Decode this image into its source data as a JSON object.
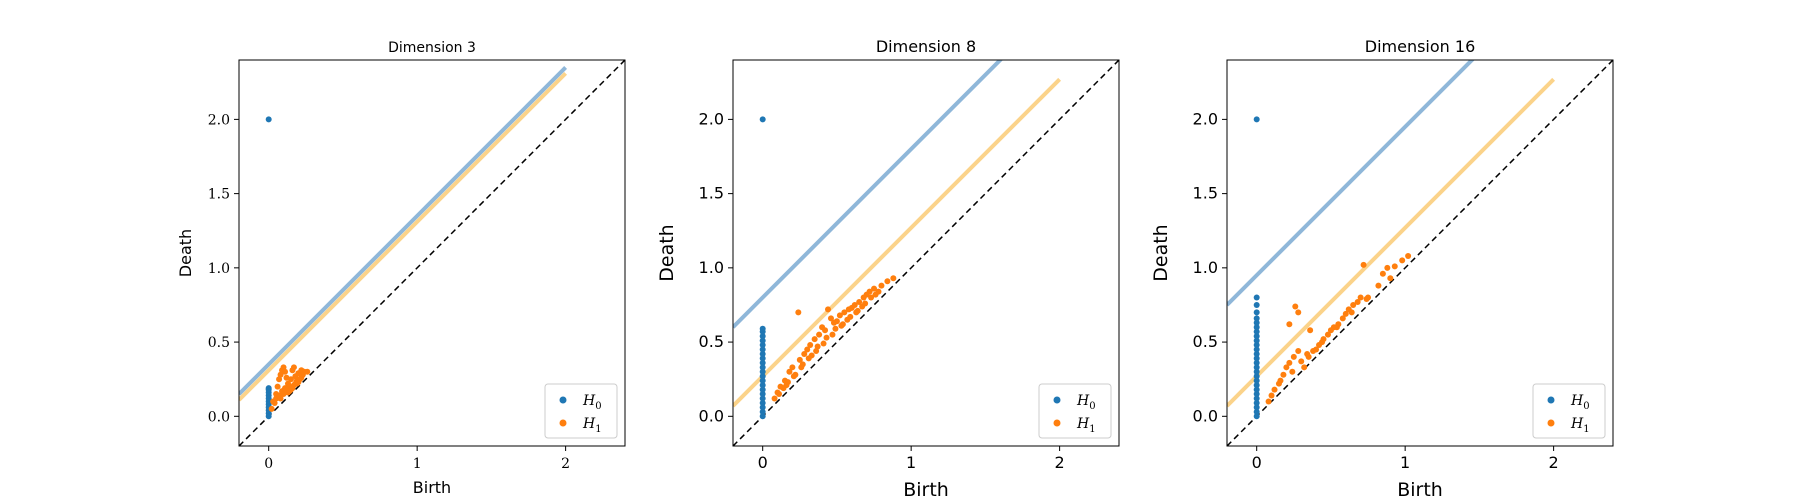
{
  "colors": {
    "H0": "#1f77b4",
    "H1": "#ff7f0e",
    "band0": "#8fb7d9",
    "band1": "#fbd38a"
  },
  "chart_data": [
    {
      "type": "scatter",
      "title": "Dimension 3",
      "xlabel": "Birth",
      "ylabel": "Death",
      "xlim": [
        -0.2,
        2.4
      ],
      "ylim": [
        -0.2,
        2.4
      ],
      "xticks": [
        "0",
        "1",
        "2"
      ],
      "yticks": [
        "0.0",
        "0.5",
        "1.0",
        "1.5",
        "2.0"
      ],
      "legend": {
        "placement": "lower-right",
        "entries": [
          "H0",
          "H1"
        ]
      },
      "band_offsets": {
        "H0": 0.35,
        "H1": 0.31
      },
      "series": [
        {
          "name": "H0",
          "points": [
            [
              0,
              2.0
            ],
            [
              0,
              0.0
            ],
            [
              0,
              0.02
            ],
            [
              0,
              0.04
            ],
            [
              0,
              0.06
            ],
            [
              0,
              0.08
            ],
            [
              0,
              0.1
            ],
            [
              0,
              0.12
            ],
            [
              0,
              0.14
            ],
            [
              0,
              0.16
            ],
            [
              0,
              0.18
            ],
            [
              0,
              0.19
            ]
          ]
        },
        {
          "name": "H1",
          "points": [
            [
              0.02,
              0.05
            ],
            [
              0.04,
              0.09
            ],
            [
              0.05,
              0.15
            ],
            [
              0.06,
              0.2
            ],
            [
              0.07,
              0.25
            ],
            [
              0.08,
              0.28
            ],
            [
              0.09,
              0.31
            ],
            [
              0.1,
              0.33
            ],
            [
              0.11,
              0.3
            ],
            [
              0.12,
              0.26
            ],
            [
              0.13,
              0.22
            ],
            [
              0.14,
              0.2
            ],
            [
              0.15,
              0.25
            ],
            [
              0.16,
              0.31
            ],
            [
              0.17,
              0.33
            ],
            [
              0.18,
              0.27
            ],
            [
              0.19,
              0.24
            ],
            [
              0.2,
              0.29
            ],
            [
              0.22,
              0.31
            ],
            [
              0.24,
              0.3
            ],
            [
              0.26,
              0.3
            ],
            [
              0.03,
              0.1
            ],
            [
              0.05,
              0.12
            ],
            [
              0.07,
              0.14
            ],
            [
              0.09,
              0.17
            ],
            [
              0.11,
              0.19
            ],
            [
              0.13,
              0.16
            ],
            [
              0.15,
              0.18
            ],
            [
              0.17,
              0.21
            ],
            [
              0.19,
              0.22
            ],
            [
              0.21,
              0.25
            ],
            [
              0.08,
              0.12
            ],
            [
              0.1,
              0.15
            ],
            [
              0.12,
              0.18
            ],
            [
              0.14,
              0.17
            ],
            [
              0.16,
              0.19
            ],
            [
              0.18,
              0.22
            ],
            [
              0.2,
              0.23
            ],
            [
              0.22,
              0.26
            ],
            [
              0.23,
              0.28
            ]
          ]
        }
      ]
    },
    {
      "type": "scatter",
      "title": "Dimension 8",
      "xlabel": "Birth",
      "ylabel": "Death",
      "xlim": [
        -0.2,
        2.4
      ],
      "ylim": [
        -0.2,
        2.4
      ],
      "xticks": [
        "0",
        "1",
        "2"
      ],
      "yticks": [
        "0.0",
        "0.5",
        "1.0",
        "1.5",
        "2.0"
      ],
      "legend": {
        "placement": "lower-right",
        "entries": [
          "H0",
          "H1"
        ]
      },
      "band_offsets": {
        "H0": 0.8,
        "H1": 0.27
      },
      "series": [
        {
          "name": "H0",
          "points": [
            [
              0,
              2.0
            ],
            [
              0,
              0.0
            ],
            [
              0,
              0.03
            ],
            [
              0,
              0.06
            ],
            [
              0,
              0.09
            ],
            [
              0,
              0.12
            ],
            [
              0,
              0.15
            ],
            [
              0,
              0.18
            ],
            [
              0,
              0.21
            ],
            [
              0,
              0.24
            ],
            [
              0,
              0.27
            ],
            [
              0,
              0.3
            ],
            [
              0,
              0.33
            ],
            [
              0,
              0.36
            ],
            [
              0,
              0.39
            ],
            [
              0,
              0.42
            ],
            [
              0,
              0.45
            ],
            [
              0,
              0.48
            ],
            [
              0,
              0.51
            ],
            [
              0,
              0.54
            ],
            [
              0,
              0.57
            ],
            [
              0,
              0.59
            ]
          ]
        },
        {
          "name": "H1",
          "points": [
            [
              0.08,
              0.12
            ],
            [
              0.1,
              0.16
            ],
            [
              0.12,
              0.2
            ],
            [
              0.15,
              0.24
            ],
            [
              0.18,
              0.3
            ],
            [
              0.2,
              0.33
            ],
            [
              0.24,
              0.7
            ],
            [
              0.25,
              0.38
            ],
            [
              0.28,
              0.42
            ],
            [
              0.3,
              0.45
            ],
            [
              0.32,
              0.48
            ],
            [
              0.35,
              0.52
            ],
            [
              0.38,
              0.55
            ],
            [
              0.4,
              0.6
            ],
            [
              0.42,
              0.58
            ],
            [
              0.44,
              0.72
            ],
            [
              0.46,
              0.66
            ],
            [
              0.48,
              0.63
            ],
            [
              0.5,
              0.64
            ],
            [
              0.52,
              0.68
            ],
            [
              0.55,
              0.7
            ],
            [
              0.58,
              0.72
            ],
            [
              0.6,
              0.73
            ],
            [
              0.62,
              0.75
            ],
            [
              0.65,
              0.77
            ],
            [
              0.68,
              0.8
            ],
            [
              0.7,
              0.82
            ],
            [
              0.72,
              0.84
            ],
            [
              0.75,
              0.86
            ],
            [
              0.8,
              0.88
            ],
            [
              0.84,
              0.91
            ],
            [
              0.88,
              0.93
            ],
            [
              0.14,
              0.19
            ],
            [
              0.17,
              0.23
            ],
            [
              0.21,
              0.27
            ],
            [
              0.26,
              0.33
            ],
            [
              0.31,
              0.39
            ],
            [
              0.36,
              0.44
            ],
            [
              0.41,
              0.49
            ],
            [
              0.47,
              0.55
            ],
            [
              0.53,
              0.61
            ],
            [
              0.57,
              0.65
            ],
            [
              0.63,
              0.7
            ],
            [
              0.67,
              0.74
            ],
            [
              0.73,
              0.8
            ],
            [
              0.11,
              0.15
            ],
            [
              0.16,
              0.21
            ],
            [
              0.22,
              0.28
            ],
            [
              0.27,
              0.35
            ],
            [
              0.33,
              0.41
            ],
            [
              0.37,
              0.47
            ],
            [
              0.43,
              0.53
            ],
            [
              0.49,
              0.59
            ],
            [
              0.54,
              0.62
            ],
            [
              0.59,
              0.67
            ],
            [
              0.64,
              0.71
            ],
            [
              0.69,
              0.76
            ],
            [
              0.76,
              0.82
            ],
            [
              0.78,
              0.84
            ]
          ]
        }
      ]
    },
    {
      "type": "scatter",
      "title": "Dimension 16",
      "xlabel": "Birth",
      "ylabel": "Death",
      "xlim": [
        -0.2,
        2.4
      ],
      "ylim": [
        -0.2,
        2.4
      ],
      "xticks": [
        "0",
        "1",
        "2"
      ],
      "yticks": [
        "0.0",
        "0.5",
        "1.0",
        "1.5",
        "2.0"
      ],
      "legend": {
        "placement": "lower-right",
        "entries": [
          "H0",
          "H1"
        ]
      },
      "band_offsets": {
        "H0": 0.95,
        "H1": 0.27
      },
      "series": [
        {
          "name": "H0",
          "points": [
            [
              0,
              2.0
            ],
            [
              0,
              0.0
            ],
            [
              0,
              0.03
            ],
            [
              0,
              0.06
            ],
            [
              0,
              0.09
            ],
            [
              0,
              0.12
            ],
            [
              0,
              0.15
            ],
            [
              0,
              0.18
            ],
            [
              0,
              0.21
            ],
            [
              0,
              0.24
            ],
            [
              0,
              0.27
            ],
            [
              0,
              0.3
            ],
            [
              0,
              0.33
            ],
            [
              0,
              0.36
            ],
            [
              0,
              0.39
            ],
            [
              0,
              0.42
            ],
            [
              0,
              0.45
            ],
            [
              0,
              0.48
            ],
            [
              0,
              0.51
            ],
            [
              0,
              0.54
            ],
            [
              0,
              0.57
            ],
            [
              0,
              0.6
            ],
            [
              0,
              0.63
            ],
            [
              0,
              0.66
            ],
            [
              0,
              0.7
            ],
            [
              0,
              0.75
            ],
            [
              0,
              0.8
            ]
          ]
        },
        {
          "name": "H1",
          "points": [
            [
              0.08,
              0.1
            ],
            [
              0.1,
              0.14
            ],
            [
              0.12,
              0.18
            ],
            [
              0.15,
              0.22
            ],
            [
              0.18,
              0.28
            ],
            [
              0.2,
              0.33
            ],
            [
              0.22,
              0.36
            ],
            [
              0.25,
              0.4
            ],
            [
              0.28,
              0.44
            ],
            [
              0.3,
              0.37
            ],
            [
              0.32,
              0.33
            ],
            [
              0.35,
              0.4
            ],
            [
              0.38,
              0.44
            ],
            [
              0.4,
              0.45
            ],
            [
              0.42,
              0.48
            ],
            [
              0.45,
              0.52
            ],
            [
              0.48,
              0.55
            ],
            [
              0.5,
              0.58
            ],
            [
              0.52,
              0.6
            ],
            [
              0.55,
              0.62
            ],
            [
              0.58,
              0.66
            ],
            [
              0.6,
              0.69
            ],
            [
              0.62,
              0.72
            ],
            [
              0.65,
              0.75
            ],
            [
              0.68,
              0.77
            ],
            [
              0.7,
              0.8
            ],
            [
              0.72,
              1.02
            ],
            [
              0.75,
              0.8
            ],
            [
              0.82,
              0.88
            ],
            [
              0.85,
              0.96
            ],
            [
              0.88,
              1.0
            ],
            [
              0.9,
              0.93
            ],
            [
              0.93,
              1.01
            ],
            [
              0.98,
              1.05
            ],
            [
              1.02,
              1.08
            ],
            [
              0.28,
              0.7
            ],
            [
              0.26,
              0.74
            ],
            [
              0.22,
              0.62
            ],
            [
              0.36,
              0.58
            ],
            [
              0.16,
              0.24
            ],
            [
              0.24,
              0.3
            ],
            [
              0.34,
              0.42
            ],
            [
              0.44,
              0.5
            ],
            [
              0.54,
              0.6
            ],
            [
              0.64,
              0.7
            ],
            [
              0.74,
              0.79
            ]
          ]
        }
      ]
    }
  ]
}
